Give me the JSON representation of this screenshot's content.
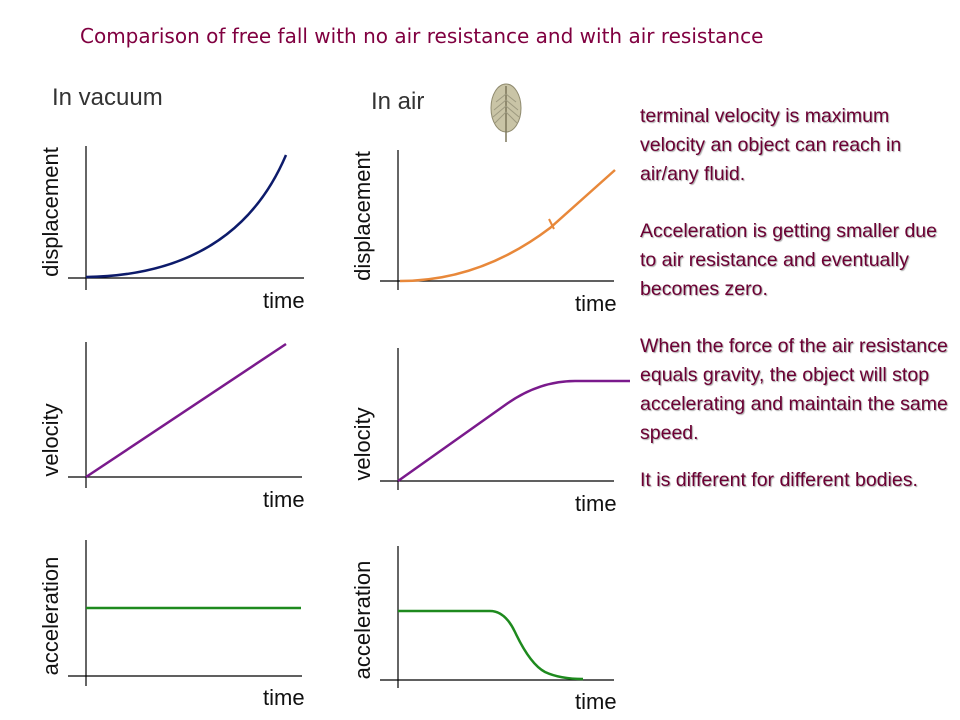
{
  "title": "Comparison of free fall with no air resistance and with air resistance",
  "columns": {
    "vacuum_label": "In vacuum",
    "air_label": "In air"
  },
  "axes": {
    "time": "time",
    "displacement": "displacement",
    "velocity": "velocity",
    "acceleration": "acceleration"
  },
  "notes": [
    "terminal velocity is maximum velocity an object can reach in air/any fluid.",
    "Acceleration is getting smaller due to air resistance and eventually becomes zero.",
    "When the force of the air resistance equals gravity, the object will stop accelerating and maintain the same speed.",
    "It is different for different bodies."
  ],
  "colors": {
    "displacement_vacuum": "#0d1b6b",
    "displacement_air": "#e8883a",
    "velocity": "#7a1a8c",
    "acceleration": "#1e8a1e",
    "title": "#800040",
    "notes": "#6b0033"
  },
  "icons": {
    "feather": "feather-icon"
  }
}
